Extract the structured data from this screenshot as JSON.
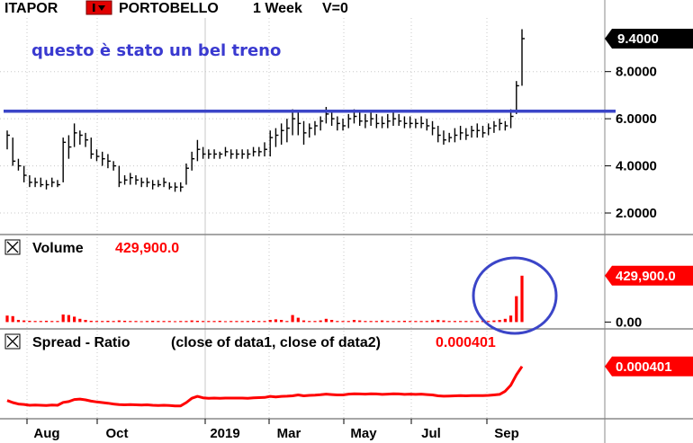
{
  "header": {
    "symbol": "ITAPOR",
    "name": "PORTOBELLO",
    "interval": "1 Week",
    "volume_label": "V=0"
  },
  "colors": {
    "price_bars": "#000000",
    "trendline": "#3b45c8",
    "volume": "#ff0000",
    "spread": "#ff0000",
    "annotation": "#3a3ad0",
    "grid": "#c8c8c8"
  },
  "chart_data": [
    {
      "type": "ohlc",
      "panel": "price",
      "annotation": "questo è stato un bel treno",
      "last_value_label": "9.4000",
      "y_ticks": [
        "9.4000",
        "8.0000",
        "6.0000",
        "4.0000",
        "2.0000"
      ],
      "ylim": [
        1.2,
        10.2
      ],
      "horizontal_line": 6.32,
      "x_ticks": [
        "Aug",
        "Oct",
        "2019",
        "Mar",
        "May",
        "Jul",
        "Sep"
      ],
      "bars": [
        {
          "h": 5.5,
          "l": 4.7,
          "c": 5.3
        },
        {
          "h": 5.2,
          "l": 4.0,
          "c": 4.2
        },
        {
          "h": 4.3,
          "l": 3.8,
          "c": 4.0
        },
        {
          "h": 4.0,
          "l": 3.3,
          "c": 3.6
        },
        {
          "h": 3.6,
          "l": 3.1,
          "c": 3.3
        },
        {
          "h": 3.5,
          "l": 3.1,
          "c": 3.3
        },
        {
          "h": 3.5,
          "l": 3.1,
          "c": 3.2
        },
        {
          "h": 3.4,
          "l": 3.0,
          "c": 3.2
        },
        {
          "h": 3.5,
          "l": 3.1,
          "c": 3.3
        },
        {
          "h": 3.4,
          "l": 3.1,
          "c": 3.2
        },
        {
          "h": 5.2,
          "l": 3.3,
          "c": 5.0
        },
        {
          "h": 5.3,
          "l": 4.3,
          "c": 4.8
        },
        {
          "h": 5.8,
          "l": 4.8,
          "c": 5.4
        },
        {
          "h": 5.5,
          "l": 4.9,
          "c": 5.3
        },
        {
          "h": 5.4,
          "l": 4.8,
          "c": 5.1
        },
        {
          "h": 5.2,
          "l": 4.3,
          "c": 4.5
        },
        {
          "h": 4.7,
          "l": 4.2,
          "c": 4.4
        },
        {
          "h": 4.6,
          "l": 4.0,
          "c": 4.3
        },
        {
          "h": 4.5,
          "l": 3.9,
          "c": 4.2
        },
        {
          "h": 4.2,
          "l": 3.8,
          "c": 4.0
        },
        {
          "h": 4.0,
          "l": 3.1,
          "c": 3.3
        },
        {
          "h": 3.6,
          "l": 3.2,
          "c": 3.4
        },
        {
          "h": 3.7,
          "l": 3.2,
          "c": 3.5
        },
        {
          "h": 3.6,
          "l": 3.2,
          "c": 3.4
        },
        {
          "h": 3.5,
          "l": 3.1,
          "c": 3.3
        },
        {
          "h": 3.5,
          "l": 3.1,
          "c": 3.3
        },
        {
          "h": 3.4,
          "l": 3.0,
          "c": 3.2
        },
        {
          "h": 3.4,
          "l": 3.1,
          "c": 3.2
        },
        {
          "h": 3.5,
          "l": 3.1,
          "c": 3.3
        },
        {
          "h": 3.3,
          "l": 3.0,
          "c": 3.1
        },
        {
          "h": 3.3,
          "l": 2.9,
          "c": 3.1
        },
        {
          "h": 3.3,
          "l": 2.9,
          "c": 3.1
        },
        {
          "h": 4.1,
          "l": 3.2,
          "c": 3.9
        },
        {
          "h": 4.6,
          "l": 3.8,
          "c": 4.3
        },
        {
          "h": 5.1,
          "l": 4.2,
          "c": 4.7
        },
        {
          "h": 4.8,
          "l": 4.3,
          "c": 4.5
        },
        {
          "h": 4.7,
          "l": 4.3,
          "c": 4.5
        },
        {
          "h": 4.7,
          "l": 4.3,
          "c": 4.5
        },
        {
          "h": 4.6,
          "l": 4.3,
          "c": 4.5
        },
        {
          "h": 4.8,
          "l": 4.4,
          "c": 4.6
        },
        {
          "h": 4.7,
          "l": 4.3,
          "c": 4.5
        },
        {
          "h": 4.7,
          "l": 4.3,
          "c": 4.5
        },
        {
          "h": 4.7,
          "l": 4.3,
          "c": 4.5
        },
        {
          "h": 4.7,
          "l": 4.3,
          "c": 4.5
        },
        {
          "h": 4.8,
          "l": 4.4,
          "c": 4.6
        },
        {
          "h": 4.8,
          "l": 4.4,
          "c": 4.6
        },
        {
          "h": 5.0,
          "l": 4.4,
          "c": 4.7
        },
        {
          "h": 5.5,
          "l": 4.4,
          "c": 5.2
        },
        {
          "h": 5.6,
          "l": 4.8,
          "c": 5.3
        },
        {
          "h": 5.8,
          "l": 4.9,
          "c": 5.5
        },
        {
          "h": 6.0,
          "l": 5.0,
          "c": 5.6
        },
        {
          "h": 6.4,
          "l": 5.3,
          "c": 6.0
        },
        {
          "h": 6.3,
          "l": 5.3,
          "c": 5.8
        },
        {
          "h": 5.9,
          "l": 4.9,
          "c": 5.4
        },
        {
          "h": 5.8,
          "l": 5.2,
          "c": 5.6
        },
        {
          "h": 5.9,
          "l": 5.3,
          "c": 5.7
        },
        {
          "h": 6.1,
          "l": 5.5,
          "c": 5.9
        },
        {
          "h": 6.5,
          "l": 5.8,
          "c": 6.2
        },
        {
          "h": 6.3,
          "l": 5.7,
          "c": 6.0
        },
        {
          "h": 6.1,
          "l": 5.5,
          "c": 5.8
        },
        {
          "h": 6.0,
          "l": 5.5,
          "c": 5.7
        },
        {
          "h": 6.2,
          "l": 5.6,
          "c": 6.0
        },
        {
          "h": 6.4,
          "l": 5.8,
          "c": 6.1
        },
        {
          "h": 6.3,
          "l": 5.7,
          "c": 5.9
        },
        {
          "h": 6.2,
          "l": 5.6,
          "c": 5.9
        },
        {
          "h": 6.3,
          "l": 5.7,
          "c": 6.0
        },
        {
          "h": 6.2,
          "l": 5.6,
          "c": 5.8
        },
        {
          "h": 6.1,
          "l": 5.6,
          "c": 5.8
        },
        {
          "h": 6.2,
          "l": 5.6,
          "c": 5.9
        },
        {
          "h": 6.3,
          "l": 5.7,
          "c": 6.0
        },
        {
          "h": 6.2,
          "l": 5.7,
          "c": 5.9
        },
        {
          "h": 6.1,
          "l": 5.6,
          "c": 5.8
        },
        {
          "h": 6.1,
          "l": 5.6,
          "c": 5.8
        },
        {
          "h": 6.0,
          "l": 5.6,
          "c": 5.8
        },
        {
          "h": 6.1,
          "l": 5.6,
          "c": 5.8
        },
        {
          "h": 6.0,
          "l": 5.5,
          "c": 5.7
        },
        {
          "h": 5.9,
          "l": 5.3,
          "c": 5.6
        },
        {
          "h": 5.7,
          "l": 5.0,
          "c": 5.3
        },
        {
          "h": 5.5,
          "l": 4.9,
          "c": 5.1
        },
        {
          "h": 5.4,
          "l": 5.0,
          "c": 5.2
        },
        {
          "h": 5.6,
          "l": 5.0,
          "c": 5.3
        },
        {
          "h": 5.7,
          "l": 5.1,
          "c": 5.4
        },
        {
          "h": 5.6,
          "l": 5.1,
          "c": 5.3
        },
        {
          "h": 5.7,
          "l": 5.2,
          "c": 5.5
        },
        {
          "h": 5.8,
          "l": 5.2,
          "c": 5.5
        },
        {
          "h": 5.7,
          "l": 5.2,
          "c": 5.4
        },
        {
          "h": 5.8,
          "l": 5.3,
          "c": 5.6
        },
        {
          "h": 5.9,
          "l": 5.4,
          "c": 5.7
        },
        {
          "h": 6.0,
          "l": 5.5,
          "c": 5.8
        },
        {
          "h": 5.9,
          "l": 5.5,
          "c": 5.7
        },
        {
          "h": 6.4,
          "l": 5.6,
          "c": 6.1
        },
        {
          "h": 7.6,
          "l": 6.2,
          "c": 7.4
        },
        {
          "h": 9.8,
          "l": 7.4,
          "c": 9.4
        }
      ]
    },
    {
      "type": "bar",
      "panel": "volume",
      "title": "Volume",
      "value_label": "429,900.0",
      "last_value_label": "429,900.0",
      "y_ticks": [
        "429,900.0",
        "0.00"
      ],
      "ylim": [
        -30000,
        570000
      ],
      "highlight_circle": true,
      "values": [
        60000,
        55000,
        20000,
        15000,
        12000,
        10000,
        10000,
        12000,
        10000,
        10000,
        70000,
        65000,
        50000,
        30000,
        20000,
        12000,
        10000,
        10000,
        12000,
        10000,
        15000,
        12000,
        10000,
        10000,
        8000,
        10000,
        12000,
        10000,
        10000,
        10000,
        8000,
        10000,
        10000,
        15000,
        12000,
        10000,
        10000,
        10000,
        12000,
        8000,
        10000,
        10000,
        10000,
        10000,
        12000,
        10000,
        10000,
        20000,
        25000,
        20000,
        10000,
        65000,
        40000,
        15000,
        10000,
        10000,
        15000,
        30000,
        20000,
        10000,
        10000,
        10000,
        20000,
        15000,
        10000,
        10000,
        10000,
        15000,
        10000,
        10000,
        10000,
        12000,
        10000,
        10000,
        10000,
        10000,
        15000,
        20000,
        15000,
        10000,
        10000,
        10000,
        10000,
        10000,
        10000,
        10000,
        10000,
        15000,
        20000,
        30000,
        60000,
        240000,
        429900
      ]
    },
    {
      "type": "line",
      "panel": "spread",
      "title": "Spread - Ratio",
      "formula": "(close of data1,  close of data2)",
      "value_label": "0.000401",
      "last_value_label": "0.000401",
      "ylim": [
        0.000155,
        0.00047
      ],
      "values": [
        0.000235,
        0.000225,
        0.000218,
        0.000216,
        0.000212,
        0.000213,
        0.000212,
        0.000211,
        0.000213,
        0.000212,
        0.000226,
        0.00023,
        0.00024,
        0.000242,
        0.000238,
        0.000232,
        0.000228,
        0.000225,
        0.000222,
        0.000218,
        0.000215,
        0.000214,
        0.000215,
        0.000214,
        0.000213,
        0.000214,
        0.000212,
        0.000211,
        0.000212,
        0.000211,
        0.000209,
        0.000209,
        0.000225,
        0.000246,
        0.000255,
        0.000248,
        0.000246,
        0.000247,
        0.000246,
        0.000247,
        0.000247,
        0.000247,
        0.000247,
        0.000246,
        0.000248,
        0.000249,
        0.00025,
        0.000255,
        0.000252,
        0.000255,
        0.000256,
        0.000258,
        0.000262,
        0.000258,
        0.00026,
        0.000261,
        0.000263,
        0.000266,
        0.000264,
        0.000262,
        0.000262,
        0.000266,
        0.000268,
        0.000267,
        0.000266,
        0.000268,
        0.000267,
        0.000265,
        0.000266,
        0.000268,
        0.000267,
        0.000265,
        0.000266,
        0.000265,
        0.000266,
        0.000264,
        0.000262,
        0.000258,
        0.000256,
        0.000257,
        0.000258,
        0.000259,
        0.000258,
        0.000259,
        0.000259,
        0.000259,
        0.00026,
        0.000262,
        0.000265,
        0.00028,
        0.00031,
        0.00036,
        0.000401
      ]
    }
  ]
}
